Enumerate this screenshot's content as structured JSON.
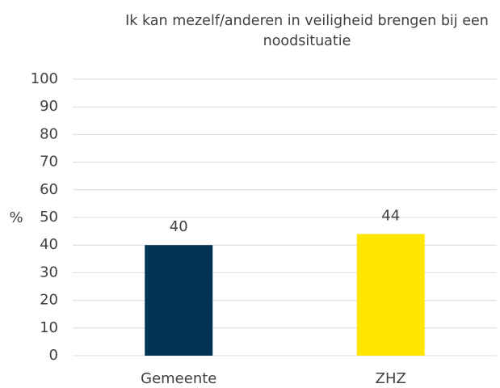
{
  "chart_data": {
    "type": "bar",
    "title": "Ik kan mezelf/anderen in veiligheid brengen bij een noodsituatie",
    "y_label": "%",
    "categories": [
      "Gemeente",
      "ZHZ"
    ],
    "values": [
      40,
      44
    ],
    "colors": [
      "#003452",
      "#ffe500"
    ],
    "ylim": [
      0,
      100
    ],
    "yticks": [
      0,
      10,
      20,
      30,
      40,
      50,
      60,
      70,
      80,
      90,
      100
    ],
    "grid": true,
    "data_labels": true
  }
}
